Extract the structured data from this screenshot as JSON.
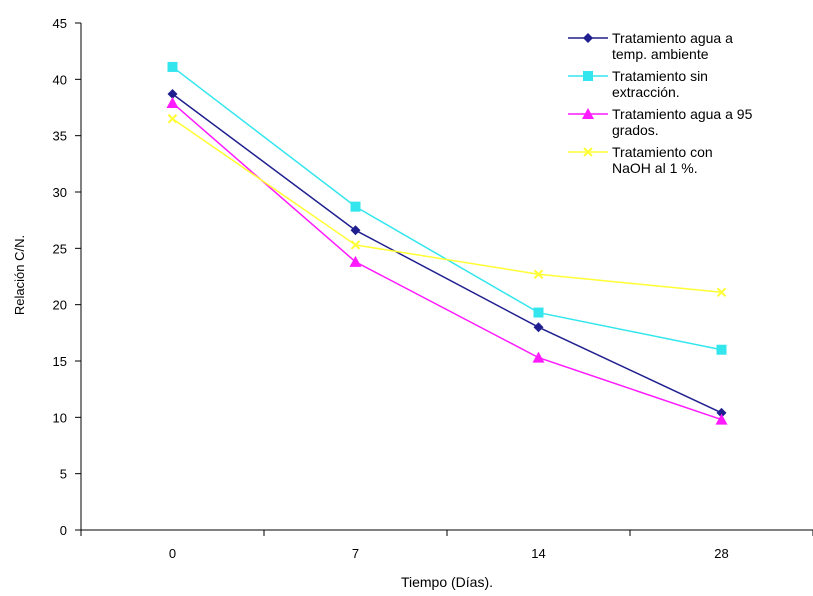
{
  "chart_data": {
    "type": "line",
    "title": "",
    "xlabel": "Tiempo (Días).",
    "ylabel": "Relación C/N.",
    "categories": [
      "0",
      "7",
      "14",
      "28"
    ],
    "ylim": [
      0,
      45
    ],
    "yticks": [
      0,
      5,
      10,
      15,
      20,
      25,
      30,
      35,
      40,
      45
    ],
    "grid": false,
    "legend": "top-right",
    "series": [
      {
        "name": "Tratamiento agua a temp. ambiente",
        "legend_lines": [
          "Tratamiento agua a",
          "temp. ambiente"
        ],
        "values": [
          38.7,
          26.6,
          18.0,
          10.4
        ],
        "color": "#1f1f8f",
        "marker": "diamond"
      },
      {
        "name": "Tratamiento sin extracción.",
        "legend_lines": [
          "Tratamiento sin",
          "extracción."
        ],
        "values": [
          41.1,
          28.7,
          19.3,
          16.0
        ],
        "color": "#33e6ee",
        "marker": "square"
      },
      {
        "name": "Tratamiento agua a 95 grados.",
        "legend_lines": [
          "Tratamiento agua a 95",
          "grados."
        ],
        "values": [
          37.9,
          23.8,
          15.3,
          9.8
        ],
        "color": "#ff1aff",
        "marker": "triangle"
      },
      {
        "name": "Tratamiento con NaOH al 1 %.",
        "legend_lines": [
          "Tratamiento con",
          "NaOH al 1 %."
        ],
        "values": [
          36.5,
          25.3,
          22.7,
          21.1
        ],
        "color": "#ffff33",
        "marker": "x"
      }
    ]
  }
}
